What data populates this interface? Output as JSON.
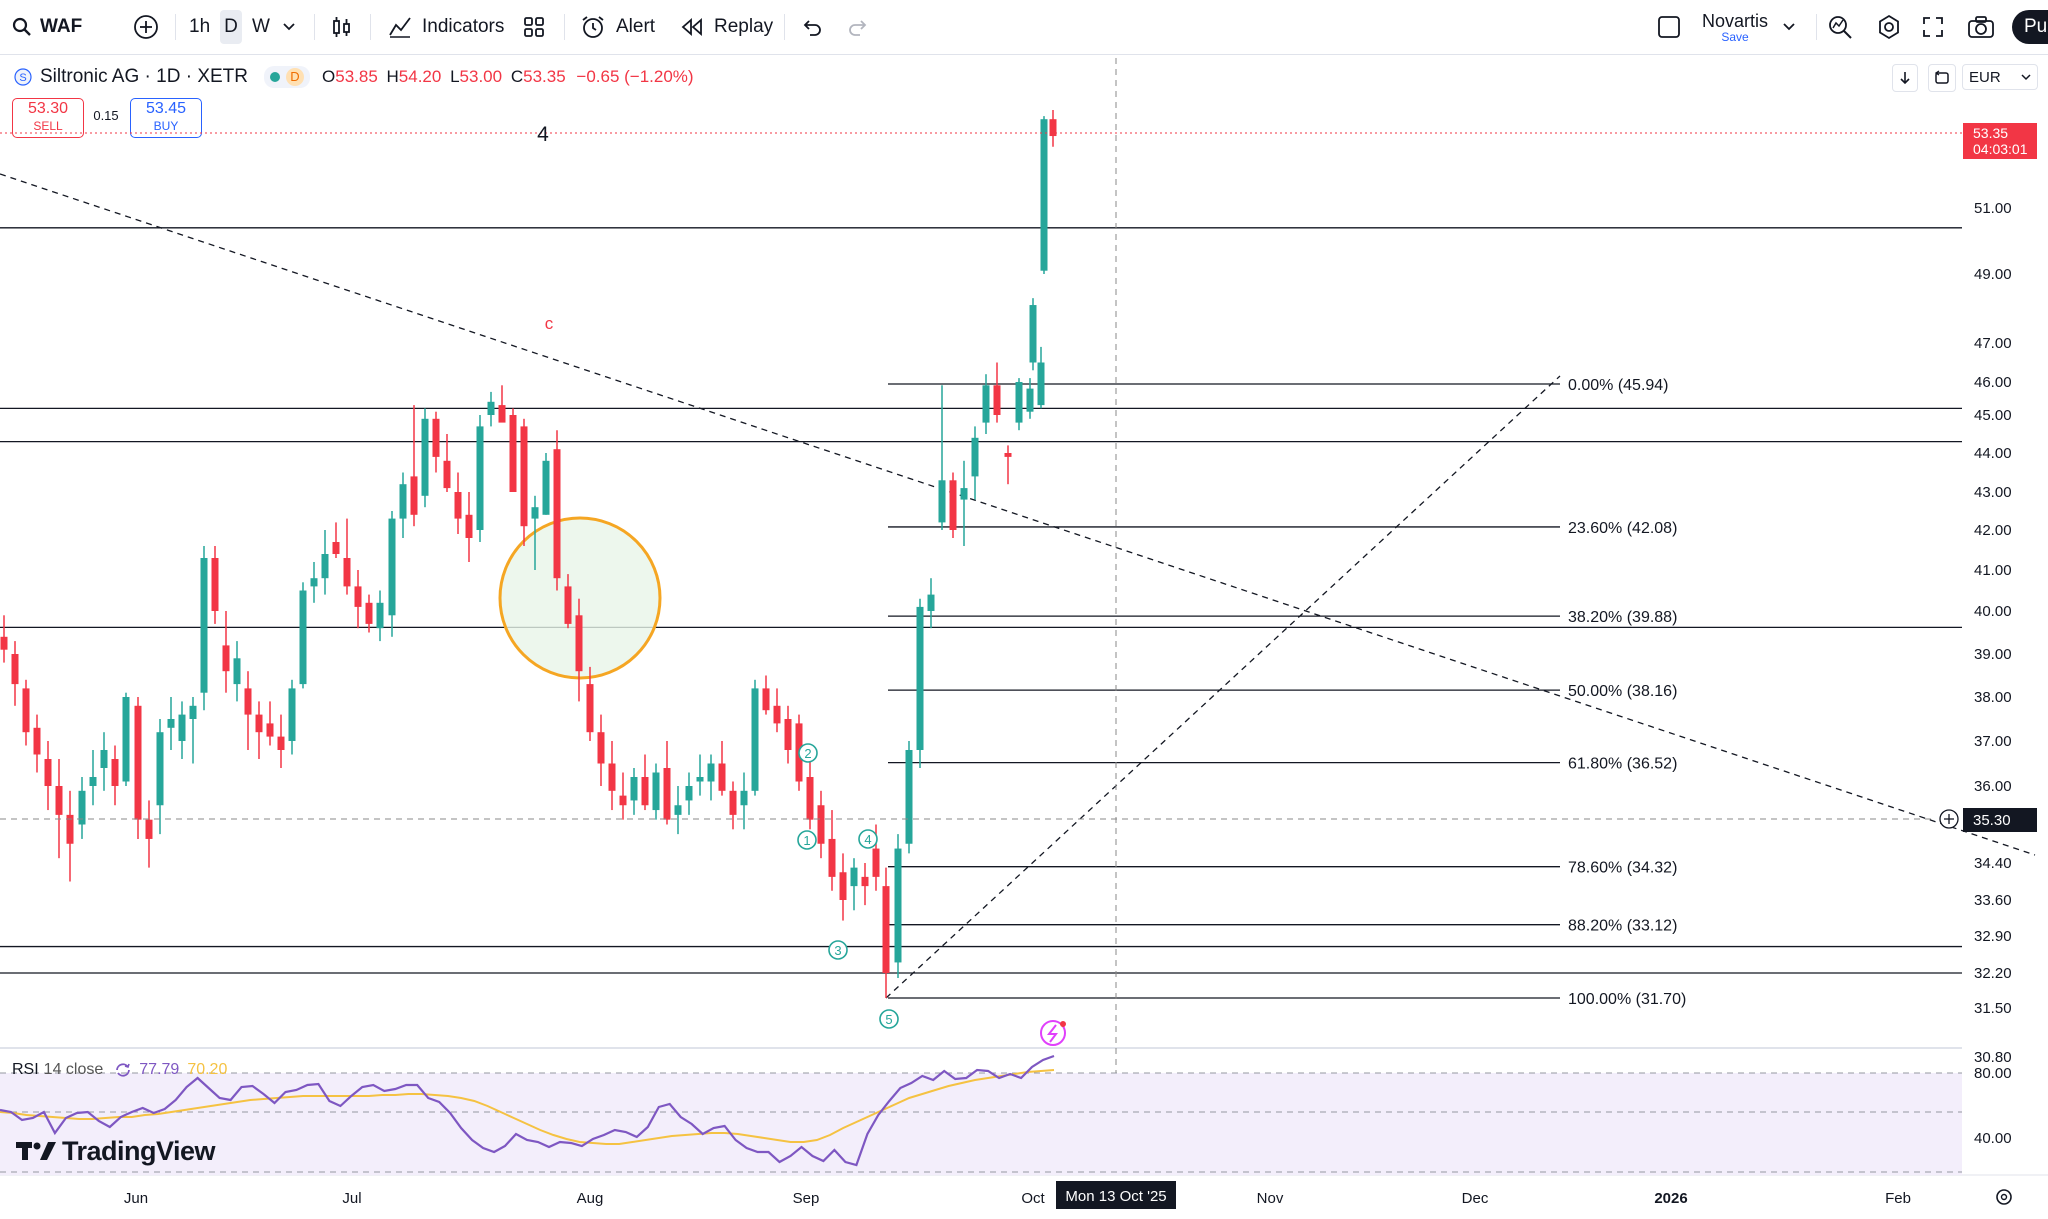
{
  "toolbar": {
    "symbol": "WAF",
    "intervals": [
      "1h",
      "D",
      "W"
    ],
    "active_interval": "D",
    "indicators_label": "Indicators",
    "alert_label": "Alert",
    "replay_label": "Replay",
    "layout_name": "Novartis",
    "save_label": "Save",
    "publish_label": "Pu"
  },
  "legend": {
    "title": "Siltronic AG · 1D · XETR",
    "interval_badge": "D",
    "open_label": "O",
    "open": "53.85",
    "high_label": "H",
    "high": "54.20",
    "low_label": "L",
    "low": "53.00",
    "close_label": "C",
    "close": "53.35",
    "change": "−0.65 (−1.20%)",
    "sell_price": "53.30",
    "sell_label": "SELL",
    "spread": "0.15",
    "buy_price": "53.45",
    "buy_label": "BUY"
  },
  "currency": "EUR",
  "price_tag": {
    "price": "53.35",
    "countdown": "04:03:01"
  },
  "crosshair": {
    "price": "35.30",
    "date": "Mon 13 Oct '25"
  },
  "annotations": {
    "wave4_label": "4",
    "wave_c_label": "c",
    "elliott_points": [
      "1",
      "2",
      "3",
      "4",
      "5"
    ]
  },
  "rsi": {
    "label": "RSI",
    "settings": "14 close",
    "value": "77.79",
    "ma_value": "70.20",
    "scale": [
      "80.00",
      "40.00"
    ]
  },
  "brand": "TradingView",
  "colors": {
    "up": "#26a69a",
    "down": "#f23645",
    "rsi_line": "#7e57c2",
    "rsi_ma": "#f5c242",
    "accent": "#2962ff",
    "circle": "#f5a623"
  },
  "chart_data": {
    "type": "candlestick",
    "price_axis_ticks": [
      "51.00",
      "49.00",
      "47.00",
      "46.00",
      "45.00",
      "44.00",
      "43.00",
      "42.00",
      "41.00",
      "40.00",
      "39.00",
      "38.00",
      "37.00",
      "36.00",
      "34.40",
      "33.60",
      "32.90",
      "32.20",
      "31.50",
      "30.80"
    ],
    "time_axis_labels": [
      "Jun",
      "Jul",
      "Aug",
      "Sep",
      "Oct",
      "Nov",
      "Dec",
      "2026",
      "Feb"
    ],
    "fib_levels": [
      {
        "label": "0.00% (45.94)",
        "price": 45.94
      },
      {
        "label": "23.60% (42.08)",
        "price": 42.08
      },
      {
        "label": "38.20% (39.88)",
        "price": 39.88
      },
      {
        "label": "50.00% (38.16)",
        "price": 38.16
      },
      {
        "label": "61.80% (36.52)",
        "price": 36.52
      },
      {
        "label": "78.60% (34.32)",
        "price": 34.32
      },
      {
        "label": "88.20% (33.12)",
        "price": 33.12
      },
      {
        "label": "100.00% (31.70)",
        "price": 31.7
      }
    ]
  }
}
